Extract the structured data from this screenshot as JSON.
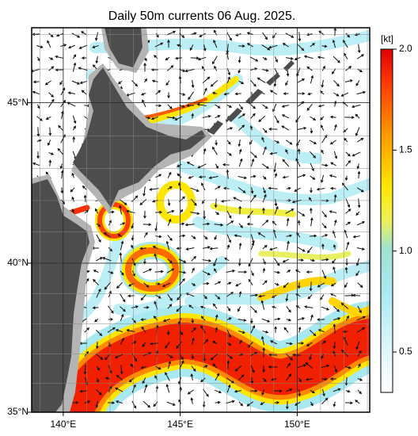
{
  "title": "Daily 50m currents 06 Aug. 2025.",
  "map": {
    "lonlim": [
      138.65,
      153.1
    ],
    "latlim": [
      35,
      47.2
    ],
    "lon_ticks": [
      {
        "value": 140,
        "label": "140°E"
      },
      {
        "value": 145,
        "label": "145°E"
      },
      {
        "value": 150,
        "label": "150°E"
      }
    ],
    "lat_ticks": [
      {
        "value": 35,
        "label": "35°N"
      },
      {
        "value": 40,
        "label": "40°N"
      },
      {
        "value": 45,
        "label": "45°N"
      }
    ]
  },
  "colorbar": {
    "unit": "[kt]",
    "lim": [
      0.3,
      2.0
    ],
    "ticks": [
      {
        "value": 0.5,
        "label": "0.5"
      },
      {
        "value": 1,
        "label": "1.0"
      },
      {
        "value": 1.5,
        "label": "1.5"
      },
      {
        "value": 2,
        "label": "2.0"
      }
    ]
  }
}
